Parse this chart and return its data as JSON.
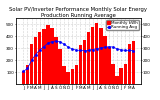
{
  "title": "Solar PV/Inverter Performance Monthly Solar Energy Production Running Average",
  "months": [
    "J",
    "F",
    "M",
    "A",
    "M",
    "J",
    "J",
    "A",
    "S",
    "O",
    "N",
    "D",
    "J",
    "F",
    "M",
    "A",
    "M",
    "J",
    "J",
    "A",
    "S",
    "O",
    "N",
    "D",
    "J",
    "F",
    "M",
    "A"
  ],
  "bar_values": [
    105,
    155,
    330,
    390,
    430,
    460,
    490,
    465,
    390,
    295,
    150,
    100,
    125,
    155,
    325,
    365,
    435,
    475,
    505,
    470,
    400,
    310,
    165,
    70,
    135,
    165,
    335,
    355
  ],
  "running_avg": [
    105,
    130,
    197,
    245,
    282,
    312,
    338,
    354,
    358,
    352,
    332,
    308,
    292,
    282,
    280,
    279,
    281,
    287,
    295,
    302,
    308,
    311,
    308,
    293,
    285,
    280,
    281,
    279
  ],
  "bar_color": "#ff0000",
  "avg_color": "#0000ff",
  "bg_color": "#ffffff",
  "plot_bg": "#ffffff",
  "grid_color": "#aaaaaa",
  "ylim": [
    0,
    550
  ],
  "yticks": [
    100,
    200,
    300,
    400,
    500
  ],
  "legend_bar": "Monthly kWh",
  "legend_avg": "Running Avg",
  "title_fontsize": 3.8,
  "tick_fontsize": 3.0,
  "legend_fontsize": 3.0
}
